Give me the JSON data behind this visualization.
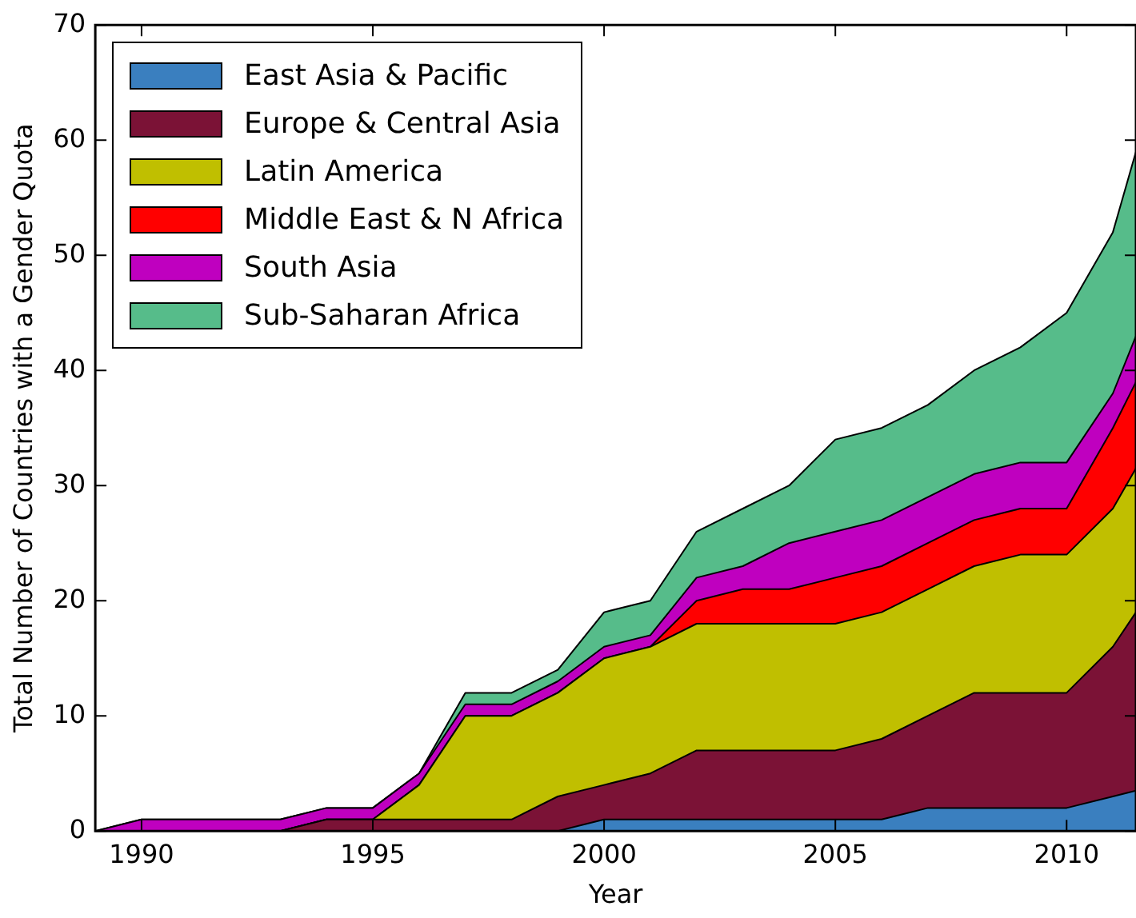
{
  "chart_data": {
    "type": "area",
    "stacked": true,
    "xlabel": "Year",
    "ylabel": "Total Number of Countries with a Gender Quota",
    "x": [
      1989,
      1990,
      1991,
      1992,
      1993,
      1994,
      1995,
      1996,
      1997,
      1998,
      1999,
      2000,
      2001,
      2002,
      2003,
      2004,
      2005,
      2006,
      2007,
      2008,
      2009,
      2010,
      2011,
      2011.5
    ],
    "xlim": [
      1989,
      2011.5
    ],
    "xticks": [
      1990,
      1995,
      2000,
      2005,
      2010
    ],
    "ylim": [
      0,
      70
    ],
    "yticks": [
      0,
      10,
      20,
      30,
      40,
      50,
      60,
      70
    ],
    "grid": false,
    "legend": "top left",
    "series": [
      {
        "name": "East Asia & Pacific",
        "color": "#3a7fbf",
        "values": [
          0,
          0,
          0,
          0,
          0,
          0,
          0,
          0,
          0,
          0,
          0,
          1,
          1,
          1,
          1,
          1,
          1,
          1,
          2,
          2,
          2,
          2,
          3,
          3.5
        ]
      },
      {
        "name": "Europe & Central Asia",
        "color": "#7b1236",
        "values": [
          0,
          0,
          0,
          0,
          0,
          1,
          1,
          1,
          1,
          1,
          3,
          3,
          4,
          6,
          6,
          6,
          6,
          7,
          8,
          10,
          10,
          10,
          13,
          15.5
        ]
      },
      {
        "name": "Latin America",
        "color": "#c0bf00",
        "values": [
          0,
          0,
          0,
          0,
          0,
          0,
          0,
          3,
          9,
          9,
          9,
          11,
          11,
          11,
          11,
          11,
          11,
          11,
          11,
          11,
          12,
          12,
          12,
          12.5
        ]
      },
      {
        "name": "Middle East & N Africa",
        "color": "#ff0000",
        "values": [
          0,
          0,
          0,
          0,
          0,
          0,
          0,
          0,
          0,
          0,
          0,
          0,
          0,
          2,
          3,
          3,
          4,
          4,
          4,
          4,
          4,
          4,
          7,
          7.5
        ]
      },
      {
        "name": "South Asia",
        "color": "#bf00bf",
        "values": [
          0,
          1,
          1,
          1,
          1,
          1,
          1,
          1,
          1,
          1,
          1,
          1,
          1,
          2,
          2,
          4,
          4,
          4,
          4,
          4,
          4,
          4,
          3,
          4
        ]
      },
      {
        "name": "Sub-Saharan Africa",
        "color": "#56bc8a",
        "values": [
          0,
          0,
          0,
          0,
          0,
          0,
          0,
          0,
          1,
          1,
          1,
          3,
          3,
          4,
          5,
          5,
          8,
          8,
          8,
          9,
          10,
          13,
          14,
          16
        ]
      }
    ]
  }
}
